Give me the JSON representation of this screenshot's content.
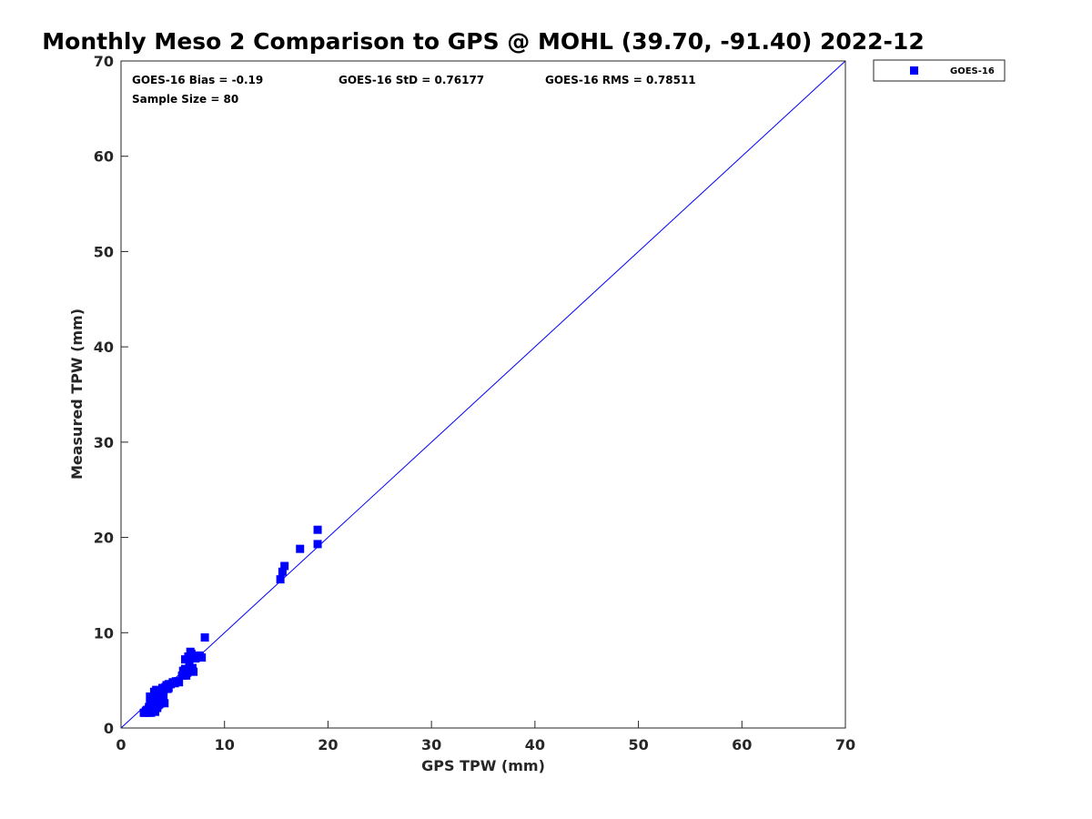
{
  "chart_data": {
    "type": "scatter",
    "title": "Monthly Meso 2 Comparison to GPS @ MOHL (39.70, -91.40) 2022-12",
    "xlabel": "GPS TPW (mm)",
    "ylabel": "Measured TPW (mm)",
    "xlim": [
      0,
      70
    ],
    "ylim": [
      0,
      70
    ],
    "xticks": [
      "0",
      "10",
      "20",
      "30",
      "40",
      "50",
      "60",
      "70"
    ],
    "yticks": [
      "0",
      "10",
      "20",
      "30",
      "40",
      "50",
      "60",
      "70"
    ],
    "grid": false,
    "legend_position": "outside-top-right",
    "reference_line": {
      "x": [
        0,
        70
      ],
      "y": [
        0,
        70
      ],
      "color": "#0000ff"
    },
    "stats": {
      "bias": "GOES-16 Bias = -0.19",
      "std": "GOES-16 StD = 0.76177",
      "rms": "GOES-16 RMS = 0.78511",
      "sample_size": "Sample Size = 80"
    },
    "series": [
      {
        "name": "GOES-16",
        "color": "#0000ff",
        "marker": "square",
        "x": [
          2.2,
          2.4,
          2.6,
          2.7,
          2.8,
          3.0,
          3.0,
          3.2,
          3.3,
          3.4,
          3.5,
          3.6,
          3.7,
          3.8,
          4.0,
          4.1,
          2.7,
          2.9,
          3.1,
          3.3,
          3.5,
          3.6,
          3.8,
          4.0,
          4.2,
          4.4,
          4.6,
          3.2,
          3.4,
          3.6,
          3.9,
          4.3,
          4.6,
          5.0,
          5.3,
          5.6,
          5.9,
          6.0,
          6.2,
          6.4,
          6.6,
          6.8,
          7.0,
          6.2,
          6.5,
          6.8,
          7.2,
          7.5,
          7.8,
          6.3,
          6.7,
          6.6,
          8.1,
          3.1,
          3.3,
          2.8,
          3.0,
          3.4,
          3.7,
          4.1,
          4.5,
          5.2,
          6.1,
          6.9,
          7.3,
          2.5,
          2.9,
          3.5,
          15.4,
          15.6,
          15.8,
          17.3,
          19.0,
          19.0,
          4.8,
          5.5,
          7.6,
          2.3,
          3.9,
          6.4
        ],
        "y": [
          1.6,
          1.8,
          1.7,
          2.2,
          2.5,
          2.3,
          2.8,
          2.6,
          3.0,
          3.2,
          3.6,
          3.3,
          3.8,
          3.5,
          4.2,
          3.9,
          1.6,
          1.6,
          1.9,
          1.7,
          2.1,
          2.4,
          2.6,
          2.9,
          2.6,
          4.5,
          4.2,
          3.8,
          4.0,
          3.2,
          3.6,
          4.3,
          4.6,
          4.8,
          4.9,
          4.8,
          5.5,
          6.0,
          6.2,
          5.8,
          7.0,
          6.1,
          5.9,
          7.2,
          7.5,
          7.8,
          7.3,
          7.6,
          7.4,
          5.5,
          8.0,
          7.3,
          9.5,
          2.6,
          2.9,
          3.3,
          3.0,
          3.6,
          2.5,
          3.4,
          4.1,
          4.7,
          6.0,
          6.3,
          7.5,
          1.9,
          2.8,
          3.1,
          15.6,
          16.4,
          17.0,
          18.8,
          20.8,
          19.3,
          4.6,
          4.9,
          7.6,
          1.6,
          3.4,
          6.1
        ]
      }
    ]
  }
}
